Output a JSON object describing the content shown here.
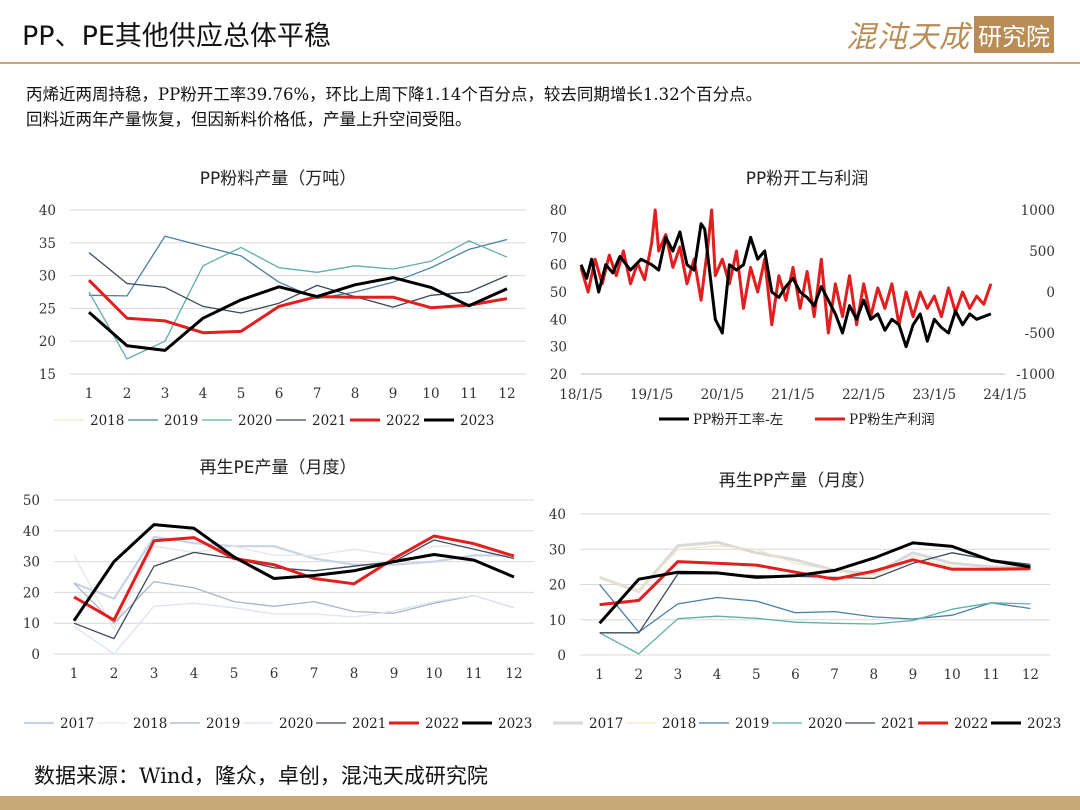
{
  "header": {
    "title": "PP、PE其他供应总体平稳",
    "brand_main": "混沌天成",
    "brand_sub": "研究院"
  },
  "description": {
    "line1": "丙烯近两周持稳，PP粉开工率39.76%，环比上周下降1.14个百分点，较去同期增长1.32个百分点。",
    "line2": "回料近两年产量恢复，但因新料价格低，产量上升空间受阻。"
  },
  "footer": {
    "source": "数据来源：Wind，隆众，卓创，混沌天成研究院"
  },
  "chart_data": [
    {
      "id": "pp_powder_output",
      "type": "line",
      "title": "PP粉料产量（万吨）",
      "categories": [
        "1",
        "2",
        "3",
        "4",
        "5",
        "6",
        "7",
        "8",
        "9",
        "10",
        "11",
        "12"
      ],
      "ylim": [
        15,
        40
      ],
      "yticks": [
        15,
        20,
        25,
        30,
        35,
        40
      ],
      "series": [
        {
          "name": "2018",
          "color": "#f2e6c8",
          "width": 1.2,
          "values": [
            null,
            null,
            null,
            null,
            null,
            null,
            null,
            null,
            null,
            null,
            null,
            null
          ]
        },
        {
          "name": "2019",
          "color": "#4a7fa8",
          "width": 1.3,
          "values": [
            27,
            26.9,
            36,
            34.5,
            33,
            29,
            26.5,
            27.5,
            29,
            31.2,
            34,
            35.5
          ]
        },
        {
          "name": "2020",
          "color": "#5fb0a8",
          "width": 1.3,
          "values": [
            27.5,
            17.3,
            20,
            31.5,
            34.3,
            31.2,
            30.5,
            31.5,
            31,
            32.2,
            35.3,
            32.8
          ]
        },
        {
          "name": "2021",
          "color": "#3b4a5c",
          "width": 1.3,
          "values": [
            33.5,
            28.8,
            28.2,
            25.3,
            24.3,
            25.8,
            28.5,
            26.8,
            25.2,
            27,
            27.5,
            30
          ]
        },
        {
          "name": "2022",
          "color": "#e31e1e",
          "width": 3,
          "values": [
            29.3,
            23.5,
            23.1,
            21.3,
            21.5,
            25.3,
            26.8,
            26.7,
            26.7,
            25.1,
            25.5,
            26.5
          ]
        },
        {
          "name": "2023",
          "color": "#000000",
          "width": 3,
          "values": [
            24.4,
            19.3,
            18.6,
            23.5,
            26.3,
            28.3,
            26.8,
            28.6,
            29.7,
            28.2,
            25.4,
            28
          ]
        }
      ]
    },
    {
      "id": "pp_powder_rate_profit",
      "type": "line",
      "title": "PP粉开工与利润",
      "xticks": [
        "18/1/5",
        "19/1/5",
        "20/1/5",
        "21/1/5",
        "22/1/5",
        "23/1/5",
        "24/1/5"
      ],
      "ylim_left": [
        20,
        80
      ],
      "yticks_left": [
        20,
        30,
        40,
        50,
        60,
        70,
        80
      ],
      "ylim_right": [
        -1000,
        1000
      ],
      "yticks_right": [
        -1000,
        -500,
        0,
        500,
        1000
      ],
      "series": [
        {
          "name": "PP粉开工率-左",
          "color": "#000000",
          "axis": "left",
          "points": [
            [
              0,
              60
            ],
            [
              0.08,
              55
            ],
            [
              0.15,
              62
            ],
            [
              0.25,
              50
            ],
            [
              0.35,
              60
            ],
            [
              0.45,
              57
            ],
            [
              0.55,
              63
            ],
            [
              0.7,
              58
            ],
            [
              0.85,
              62
            ],
            [
              1.0,
              60
            ],
            [
              1.1,
              58
            ],
            [
              1.2,
              70
            ],
            [
              1.3,
              65
            ],
            [
              1.4,
              72
            ],
            [
              1.5,
              60
            ],
            [
              1.6,
              58
            ],
            [
              1.7,
              75
            ],
            [
              1.75,
              73
            ],
            [
              1.8,
              62
            ],
            [
              1.9,
              40
            ],
            [
              2.0,
              35
            ],
            [
              2.1,
              60
            ],
            [
              2.2,
              58
            ],
            [
              2.3,
              60
            ],
            [
              2.4,
              70
            ],
            [
              2.5,
              62
            ],
            [
              2.6,
              65
            ],
            [
              2.7,
              50
            ],
            [
              2.8,
              48
            ],
            [
              2.9,
              52
            ],
            [
              3.0,
              55
            ],
            [
              3.1,
              50
            ],
            [
              3.2,
              48
            ],
            [
              3.3,
              45
            ],
            [
              3.4,
              52
            ],
            [
              3.5,
              47
            ],
            [
              3.6,
              42
            ],
            [
              3.7,
              35
            ],
            [
              3.8,
              45
            ],
            [
              3.9,
              40
            ],
            [
              4.0,
              47
            ],
            [
              4.1,
              40
            ],
            [
              4.2,
              42
            ],
            [
              4.3,
              36
            ],
            [
              4.4,
              40
            ],
            [
              4.5,
              38
            ],
            [
              4.6,
              30
            ],
            [
              4.7,
              38
            ],
            [
              4.8,
              42
            ],
            [
              4.9,
              32
            ],
            [
              5.0,
              40
            ],
            [
              5.1,
              37
            ],
            [
              5.2,
              35
            ],
            [
              5.3,
              43
            ],
            [
              5.4,
              38
            ],
            [
              5.5,
              42
            ],
            [
              5.6,
              40
            ],
            [
              5.8,
              42
            ]
          ]
        },
        {
          "name": "PP粉生产利润",
          "color": "#e31e1e",
          "axis": "right",
          "points": [
            [
              0,
              300
            ],
            [
              0.1,
              0
            ],
            [
              0.2,
              400
            ],
            [
              0.3,
              100
            ],
            [
              0.4,
              450
            ],
            [
              0.5,
              200
            ],
            [
              0.6,
              500
            ],
            [
              0.7,
              100
            ],
            [
              0.8,
              350
            ],
            [
              0.9,
              150
            ],
            [
              1.0,
              600
            ],
            [
              1.05,
              1000
            ],
            [
              1.1,
              500
            ],
            [
              1.2,
              700
            ],
            [
              1.3,
              300
            ],
            [
              1.4,
              550
            ],
            [
              1.5,
              100
            ],
            [
              1.6,
              400
            ],
            [
              1.7,
              -100
            ],
            [
              1.8,
              600
            ],
            [
              1.85,
              1000
            ],
            [
              1.9,
              200
            ],
            [
              2.0,
              400
            ],
            [
              2.1,
              100
            ],
            [
              2.2,
              500
            ],
            [
              2.3,
              -200
            ],
            [
              2.4,
              300
            ],
            [
              2.5,
              0
            ],
            [
              2.6,
              400
            ],
            [
              2.7,
              -400
            ],
            [
              2.8,
              200
            ],
            [
              2.9,
              -100
            ],
            [
              3.0,
              300
            ],
            [
              3.1,
              -200
            ],
            [
              3.2,
              250
            ],
            [
              3.3,
              -300
            ],
            [
              3.4,
              400
            ],
            [
              3.5,
              -500
            ],
            [
              3.6,
              100
            ],
            [
              3.7,
              -300
            ],
            [
              3.8,
              200
            ],
            [
              3.9,
              -400
            ],
            [
              4.0,
              100
            ],
            [
              4.1,
              -300
            ],
            [
              4.2,
              50
            ],
            [
              4.3,
              -200
            ],
            [
              4.4,
              100
            ],
            [
              4.5,
              -400
            ],
            [
              4.6,
              0
            ],
            [
              4.7,
              -300
            ],
            [
              4.8,
              0
            ],
            [
              4.9,
              -200
            ],
            [
              5.0,
              -50
            ],
            [
              5.1,
              -300
            ],
            [
              5.2,
              50
            ],
            [
              5.3,
              -250
            ],
            [
              5.4,
              0
            ],
            [
              5.5,
              -200
            ],
            [
              5.6,
              -50
            ],
            [
              5.7,
              -150
            ],
            [
              5.8,
              100
            ]
          ]
        }
      ]
    },
    {
      "id": "recycled_pe_output",
      "type": "line",
      "title": "再生PE产量（月度）",
      "categories": [
        "1",
        "2",
        "3",
        "4",
        "5",
        "6",
        "7",
        "8",
        "9",
        "10",
        "11",
        "12"
      ],
      "ylim": [
        0,
        50
      ],
      "yticks": [
        0,
        10,
        20,
        30,
        40,
        50
      ],
      "series": [
        {
          "name": "2017",
          "color": "#c9d3e8",
          "width": 2.2,
          "values": [
            23,
            18,
            38,
            36,
            35,
            35,
            31,
            29,
            29,
            30,
            32,
            32
          ]
        },
        {
          "name": "2018",
          "color": "#e6e6e6",
          "width": 1.3,
          "values": [
            32,
            8,
            35,
            33,
            35,
            32,
            32,
            34,
            32,
            35,
            35,
            32
          ]
        },
        {
          "name": "2019",
          "color": "#aab5c5",
          "width": 1.3,
          "values": [
            23,
            10,
            23.5,
            21.5,
            17,
            15.5,
            17,
            13.8,
            13.2,
            16.5,
            19,
            15
          ]
        },
        {
          "name": "2020",
          "color": "#dde4ee",
          "width": 1.3,
          "values": [
            9,
            0,
            15.5,
            16.5,
            15,
            13,
            13,
            12,
            14,
            17,
            19,
            15
          ]
        },
        {
          "name": "2021",
          "color": "#3b4a5c",
          "width": 1.3,
          "values": [
            10,
            5,
            28.5,
            33,
            31,
            28,
            27,
            28.5,
            30,
            37,
            34,
            31
          ]
        },
        {
          "name": "2022",
          "color": "#e31e1e",
          "width": 3,
          "values": [
            18.5,
            11,
            36.8,
            37.8,
            31,
            29,
            24.5,
            22.8,
            31,
            38.3,
            35.8,
            31.8
          ]
        },
        {
          "name": "2023",
          "color": "#000000",
          "width": 3,
          "values": [
            10.8,
            30,
            42,
            40.8,
            31.5,
            24.5,
            25.5,
            27,
            30,
            32.3,
            30.5,
            25
          ]
        }
      ]
    },
    {
      "id": "recycled_pp_output",
      "type": "line",
      "title": "再生PP产量（月度）",
      "categories": [
        "1",
        "2",
        "3",
        "4",
        "5",
        "6",
        "7",
        "8",
        "9",
        "10",
        "11",
        "12"
      ],
      "ylim": [
        0,
        40
      ],
      "yticks": [
        0,
        10,
        20,
        30,
        40
      ],
      "series": [
        {
          "name": "2017",
          "color": "#d9d9d9",
          "width": 3,
          "values": [
            22,
            18,
            31,
            32,
            29,
            27,
            24,
            23,
            29,
            26,
            25,
            25
          ]
        },
        {
          "name": "2018",
          "color": "#f2e6c8",
          "width": 1.3,
          "values": [
            22,
            18,
            30,
            31,
            30,
            26,
            24,
            22,
            28,
            25,
            24,
            24
          ]
        },
        {
          "name": "2019",
          "color": "#4a7fa8",
          "width": 1.3,
          "values": [
            20,
            6.5,
            14.5,
            16.3,
            15.3,
            12,
            12.3,
            10.8,
            10.2,
            11.3,
            14.8,
            13.2
          ]
        },
        {
          "name": "2020",
          "color": "#5fb0a8",
          "width": 1.3,
          "values": [
            6.3,
            0.3,
            10.3,
            11,
            10.4,
            9.3,
            9,
            8.8,
            9.8,
            13,
            14.8,
            14.5
          ]
        },
        {
          "name": "2021",
          "color": "#3b4a5c",
          "width": 1.3,
          "values": [
            6.3,
            6.3,
            23,
            23,
            22.5,
            22.3,
            22,
            21.7,
            26,
            29,
            27,
            25.7
          ]
        },
        {
          "name": "2022",
          "color": "#e31e1e",
          "width": 3,
          "values": [
            14.3,
            15.5,
            26.5,
            26,
            25.5,
            23.5,
            21.5,
            23.8,
            27,
            24.3,
            24.3,
            24.5
          ]
        },
        {
          "name": "2023",
          "color": "#000000",
          "width": 3,
          "values": [
            9,
            21.5,
            23.5,
            23.3,
            22,
            22.5,
            24,
            27.5,
            31.8,
            30.8,
            26.8,
            25
          ]
        }
      ]
    }
  ]
}
